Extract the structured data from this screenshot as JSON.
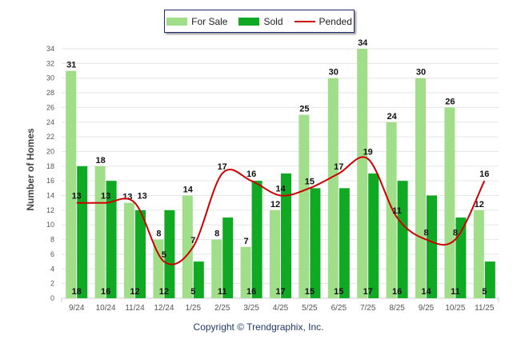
{
  "chart_data": {
    "type": "bar",
    "categories": [
      "9/24",
      "10/24",
      "11/24",
      "12/24",
      "1/25",
      "2/25",
      "3/25",
      "4/25",
      "5/25",
      "6/25",
      "7/25",
      "8/25",
      "9/25",
      "10/25",
      "11/25"
    ],
    "series": [
      {
        "name": "For Sale",
        "type": "bar",
        "color": "#a0de8a",
        "values": [
          31,
          18,
          13,
          8,
          14,
          8,
          7,
          12,
          25,
          30,
          34,
          24,
          30,
          26,
          12
        ]
      },
      {
        "name": "Sold",
        "type": "bar",
        "color": "#0fa924",
        "values": [
          18,
          16,
          12,
          12,
          5,
          11,
          16,
          17,
          15,
          15,
          17,
          16,
          14,
          11,
          5
        ]
      },
      {
        "name": "Pended",
        "type": "line",
        "color": "#cc0000",
        "values": [
          13,
          13,
          13,
          5,
          7,
          17,
          16,
          14,
          15,
          17,
          19,
          11,
          8,
          8,
          16
        ]
      }
    ],
    "xlabel": "",
    "ylabel": "Number of Homes",
    "ylim": [
      0,
      34
    ],
    "ytick_step": 2,
    "grid": true,
    "legend_placement": "top-center"
  },
  "footer": {
    "copyright": "Copyright © Trendgraphix, Inc."
  }
}
